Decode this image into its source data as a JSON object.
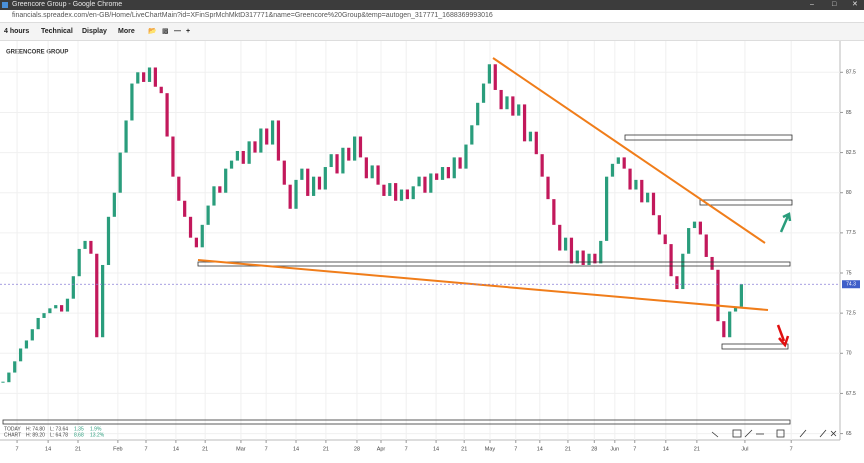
{
  "window": {
    "title": "Greencore Group - Google Chrome"
  },
  "browser": {
    "url": "financials.spreadex.com/en-GB/Home/LiveChartMain?id=XFinSprMchMktD317771&name=Greencore%20Group&temp=autogen_317771_1688369993016"
  },
  "toolbar": {
    "items": [
      "4 hours",
      "Technical",
      "Display",
      "More"
    ]
  },
  "chart_data": {
    "type": "candlestick",
    "title": "GREENCORE GROUP",
    "up_color": "#2a9d7c",
    "down_color": "#c2185b",
    "grid": true,
    "xlim": [
      0,
      136
    ],
    "ylim": [
      64.6,
      89.2
    ],
    "xticks": [
      {
        "value": 2.4,
        "label": "7"
      },
      {
        "value": 7.7,
        "label": "14"
      },
      {
        "value": 12.8,
        "label": "21"
      },
      {
        "value": 19.6,
        "label": "Feb"
      },
      {
        "value": 24.4,
        "label": "7"
      },
      {
        "value": 29.5,
        "label": "14"
      },
      {
        "value": 34.5,
        "label": "21"
      },
      {
        "value": 40.6,
        "label": "Mar"
      },
      {
        "value": 44.9,
        "label": "7"
      },
      {
        "value": 50,
        "label": "14"
      },
      {
        "value": 55.1,
        "label": "21"
      },
      {
        "value": 60.4,
        "label": "28"
      },
      {
        "value": 64.5,
        "label": "Apr"
      },
      {
        "value": 68.8,
        "label": "7"
      },
      {
        "value": 73.9,
        "label": "14"
      },
      {
        "value": 78.7,
        "label": "21"
      },
      {
        "value": 83.1,
        "label": "May"
      },
      {
        "value": 87.5,
        "label": "7"
      },
      {
        "value": 91.6,
        "label": "14"
      },
      {
        "value": 96.4,
        "label": "21"
      },
      {
        "value": 100.9,
        "label": "28"
      },
      {
        "value": 104.4,
        "label": "Jun"
      },
      {
        "value": 107.8,
        "label": "7"
      },
      {
        "value": 113.1,
        "label": "14"
      },
      {
        "value": 118.4,
        "label": "21"
      },
      {
        "value": 126.6,
        "label": "Jul"
      },
      {
        "value": 134.5,
        "label": "7"
      }
    ],
    "yticks": [
      65,
      67.5,
      70,
      72.5,
      75,
      77.5,
      80,
      82.5,
      85,
      87.5
    ],
    "values": [
      68.2,
      68.8,
      69.5,
      70.3,
      70.8,
      71.5,
      72.2,
      72.5,
      72.8,
      73.0,
      72.6,
      73.4,
      74.8,
      76.5,
      77.0,
      76.2,
      71.0,
      75.5,
      78.5,
      80.0,
      82.5,
      84.5,
      86.8,
      87.5,
      86.9,
      87.8,
      86.6,
      86.2,
      83.5,
      81.0,
      79.5,
      78.5,
      77.2,
      76.6,
      78.0,
      79.2,
      80.4,
      80.0,
      81.5,
      82.0,
      82.6,
      81.8,
      83.2,
      82.5,
      84.0,
      83.0,
      84.5,
      82.0,
      80.5,
      79.0,
      80.8,
      81.5,
      79.8,
      81.0,
      80.2,
      81.6,
      82.4,
      81.2,
      82.8,
      82.0,
      83.5,
      82.2,
      80.9,
      81.7,
      80.5,
      79.8,
      80.6,
      79.5,
      80.2,
      79.6,
      80.4,
      81.0,
      80.0,
      81.2,
      80.8,
      81.6,
      80.9,
      82.2,
      81.5,
      83.0,
      84.2,
      85.6,
      86.8,
      88.0,
      86.4,
      85.2,
      86.0,
      84.8,
      85.5,
      83.2,
      83.8,
      82.4,
      81.0,
      79.6,
      78.0,
      76.4,
      77.2,
      75.6,
      76.4,
      75.5,
      76.2,
      75.6,
      77.0,
      81.0,
      81.8,
      82.2,
      81.5,
      80.2,
      80.8,
      79.4,
      80.0,
      78.6,
      77.4,
      76.8,
      74.8,
      74.0,
      76.2,
      77.8,
      78.2,
      77.4,
      76.0,
      75.2,
      72.0,
      71.0,
      72.6,
      72.9,
      74.3
    ]
  },
  "stats": {
    "rows": [
      [
        "TODAY",
        "H: 74.80",
        "L: 73.64",
        "1.35",
        "1.9%"
      ],
      [
        "CHART",
        "H: 89.20",
        "L: 64.78",
        "8.68",
        "13.2%"
      ]
    ]
  }
}
